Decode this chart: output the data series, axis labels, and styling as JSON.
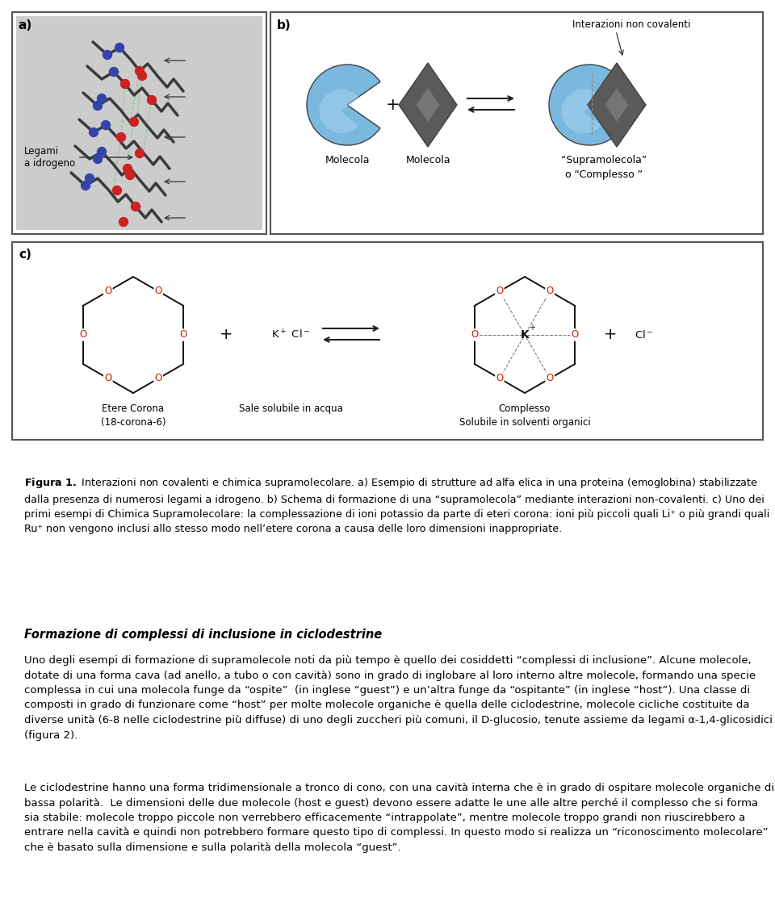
{
  "page_bg": "#ffffff",
  "border_color": "#555555",
  "text_color": "#000000",
  "pacman_color": "#7ab8e0",
  "diamond_color": "#5a5a5a",
  "fig_width": 9.6,
  "fig_height": 11.24,
  "heading": "Formazione di complessi di inclusione in ciclodestrine",
  "caption_bold": "Figura 1.",
  "caption_rest": " Interazioni non covalenti e chimica supramolecolare. a) Esempio di strutture ad alfa elica in una proteina (emoglobina) stabilizzate dalla presenza di numerosi legami a idrogeno. b) Schema di formazione di una “supramolecola” mediante interazioni non-covalenti. c) Uno dei primi esempi di Chimica Supramolecolare: la complessazione di ioni potassio da parte di eteri corona: ioni più piccoli quali Li⁺ o più grandi quali Ru⁺ non vengono inclusi allo stesso modo nell’etere corona a causa delle loro dimensioni inappropriate.",
  "body1": "Uno degli esempi di formazione di supramolecole noti da più tempo è quello dei cosiddetti “complessi di inclusione”. Alcune molecole, dotate di una forma cava (ad anello, a tubo o con cavità) sono in grado di inglobare al loro interno altre molecole, formando una specie complessa in cui una molecola funge da “ospite”  (in inglese “guest”) e un’altra funge da “ospitante” (in inglese “host”). Una classe di composti in grado di funzionare come “host” per molte molecole organiche è quella delle ciclodestrine, molecole cicliche costituite da diverse unità (6-8 nelle ciclodestrine più diffuse) di uno degli zuccheri più comuni, il D-glucosio, tenute assieme da legami α-1,4-glicosidici (figura 2).",
  "body2": "Le ciclodestrine hanno una forma tridimensionale a tronco di cono, con una cavità interna che è in grado di ospitare molecole organiche di bassa polarità.  Le dimensioni delle due molecole (host e guest) devono essere adatte le une alle altre perché il complesso che si forma sia stabile: molecole troppo piccole non verrebbero efficacemente “intrappolate”, mentre molecole troppo grandi non riuscirebbero a entrare nella cavità e quindi non potrebbero formare questo tipo di complessi. In questo modo si realizza un “riconoscimento molecolare” che è basato sulla dimensione e sulla polarità della molecola “guest”."
}
